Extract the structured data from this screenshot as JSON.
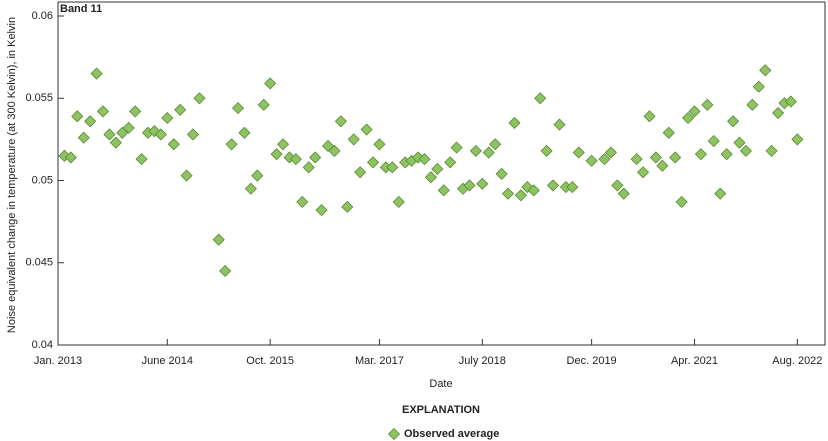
{
  "chart_data": {
    "type": "scatter",
    "title": "Band 11",
    "x_label": "Date",
    "y_label": "Noise equivalent change in temperature (at 300 Kelvin), in Kelvin",
    "legend_title": "EXPLANATION",
    "series": [
      {
        "name": "Observed average",
        "color": "#8dc363",
        "x": [
          1,
          2,
          3,
          4,
          5,
          6,
          7,
          8,
          9,
          10,
          11,
          12,
          13,
          14,
          15,
          16,
          17,
          18,
          19,
          20,
          21,
          22,
          25,
          26,
          27,
          28,
          29,
          30,
          31,
          32,
          33,
          34,
          35,
          36,
          37,
          38,
          39,
          40,
          41,
          42,
          43,
          44,
          45,
          46,
          47,
          48,
          49,
          50,
          51,
          52,
          53,
          54,
          55,
          56,
          57,
          58,
          59,
          60,
          61,
          62,
          63,
          64,
          65,
          66,
          67,
          68,
          69,
          70,
          71,
          72,
          73,
          74,
          75,
          76,
          77,
          78,
          79,
          80,
          81,
          83,
          85,
          86,
          87,
          88,
          90,
          91,
          92,
          93,
          94,
          95,
          96,
          97,
          98,
          99,
          100,
          101,
          102,
          103,
          104,
          105,
          106,
          107,
          108,
          109,
          110,
          111,
          112,
          113,
          114,
          115
        ],
        "values": [
          0.0515,
          0.0514,
          0.0539,
          0.0526,
          0.0536,
          0.0565,
          0.0542,
          0.0528,
          0.0523,
          0.0529,
          0.0532,
          0.0542,
          0.0513,
          0.0529,
          0.053,
          0.0528,
          0.0538,
          0.0522,
          0.0543,
          0.0503,
          0.0528,
          0.055,
          0.0464,
          0.0445,
          0.0522,
          0.0544,
          0.0529,
          0.0495,
          0.0503,
          0.0546,
          0.0559,
          0.0516,
          0.0522,
          0.0514,
          0.0513,
          0.0487,
          0.0508,
          0.0514,
          0.0482,
          0.0521,
          0.0518,
          0.0536,
          0.0484,
          0.0525,
          0.0505,
          0.0531,
          0.0511,
          0.0522,
          0.0508,
          0.0508,
          0.0487,
          0.0511,
          0.0512,
          0.0514,
          0.0513,
          0.0502,
          0.0507,
          0.0494,
          0.0511,
          0.052,
          0.0495,
          0.0497,
          0.0518,
          0.0498,
          0.0517,
          0.0522,
          0.0504,
          0.0492,
          0.0535,
          0.0491,
          0.0496,
          0.0494,
          0.055,
          0.0518,
          0.0497,
          0.0534,
          0.0496,
          0.0496,
          0.0517,
          0.0512,
          0.0513,
          0.0517,
          0.0497,
          0.0492,
          0.0513,
          0.0505,
          0.0539,
          0.0514,
          0.0509,
          0.0529,
          0.0514,
          0.0487,
          0.0538,
          0.0542,
          0.0516,
          0.0546,
          0.0524,
          0.0492,
          0.0516,
          0.0536,
          0.0523,
          0.0518,
          0.0546,
          0.0557,
          0.0567,
          0.0518,
          0.0541,
          0.0547,
          0.0548,
          0.0525
        ]
      }
    ],
    "xlim": [
      0,
      119.3
    ],
    "xticks": [
      {
        "value": 0,
        "label": "Jan. 2013"
      },
      {
        "value": 17,
        "label": "June 2014"
      },
      {
        "value": 33,
        "label": "Oct. 2015"
      },
      {
        "value": 50,
        "label": "Mar. 2017"
      },
      {
        "value": 66,
        "label": "July 2018"
      },
      {
        "value": 83,
        "label": "Dec. 2019"
      },
      {
        "value": 99,
        "label": "Apr. 2021"
      },
      {
        "value": 115,
        "label": "Aug. 2022"
      }
    ],
    "ylim": [
      0.04,
      0.06
    ],
    "yticks": [
      0.04,
      0.045,
      0.05,
      0.055,
      0.06
    ]
  }
}
